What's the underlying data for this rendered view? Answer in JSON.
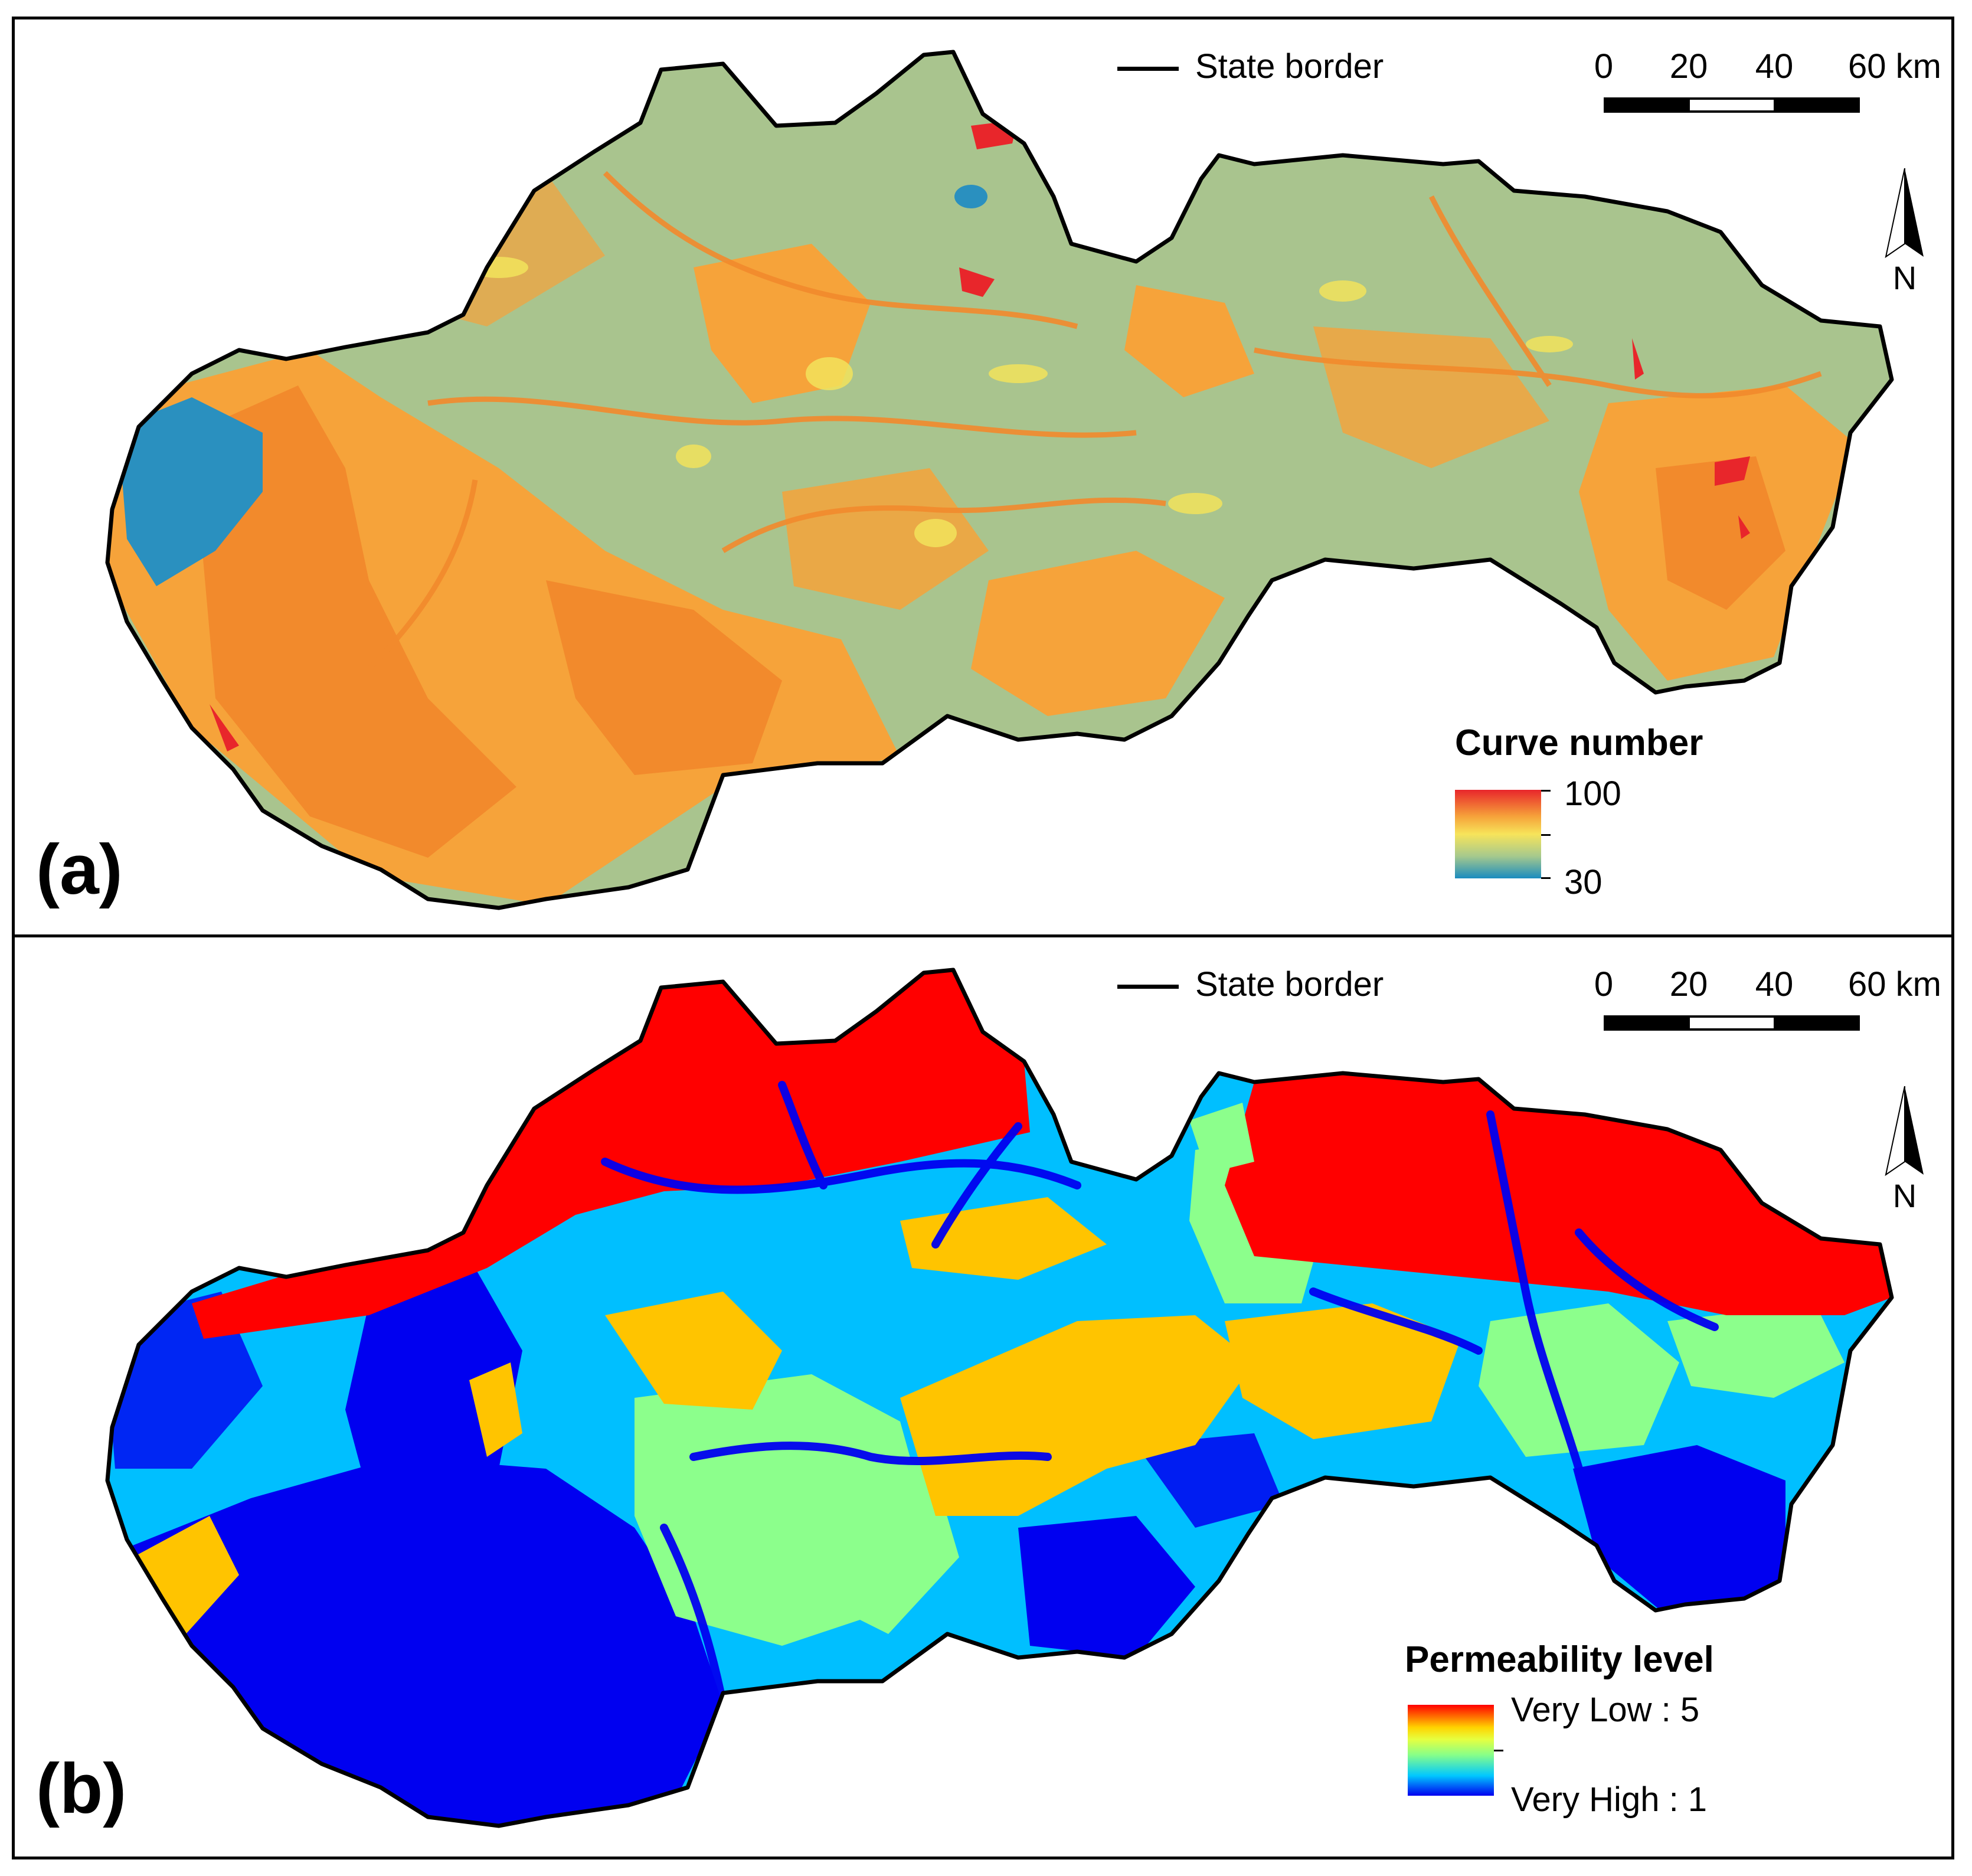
{
  "panels": [
    {
      "id": "a",
      "label": "(a)",
      "legend_line_label": "State border",
      "scale": {
        "labels": [
          "0",
          "20",
          "40",
          "60 km"
        ]
      },
      "north_label": "N",
      "ramp": {
        "title": "Curve number",
        "max_label": "100",
        "min_label": "30",
        "colors": [
          "#e8262b",
          "#f6a23a",
          "#f7e45a",
          "#a6c98d",
          "#1a8cbf"
        ]
      }
    },
    {
      "id": "b",
      "label": "(b)",
      "legend_line_label": "State border",
      "scale": {
        "labels": [
          "0",
          "20",
          "40",
          "60 km"
        ]
      },
      "north_label": "N",
      "ramp": {
        "title": "Permeability level",
        "max_label": "Very Low : 5",
        "min_label": "Very High : 1",
        "colors": [
          "#ff0000",
          "#ffd400",
          "#88ff88",
          "#00c8ff",
          "#0000f0"
        ]
      }
    }
  ],
  "colors": {
    "border": "#000000",
    "cn_base": "#a9c48e",
    "cn_orange": "#f6a33a",
    "cn_deep_orange": "#f28a2c",
    "cn_yellow": "#f2e35c",
    "cn_red": "#e8262b",
    "cn_blue": "#2a90bf",
    "perm_blue": "#0000f0",
    "perm_cyan": "#00bfff",
    "perm_green": "#8cff8c",
    "perm_yellow": "#ffc400",
    "perm_red": "#ff0000"
  }
}
